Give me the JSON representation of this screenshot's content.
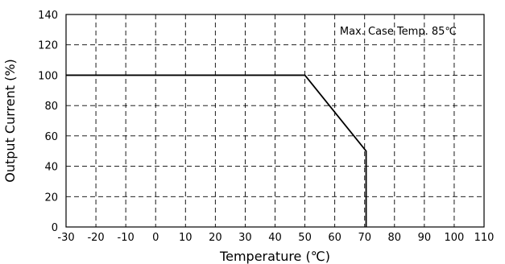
{
  "chart_data": {
    "type": "line",
    "title": "",
    "xlabel": "Temperature (℃)",
    "ylabel": "Output Current (%)",
    "xlim": [
      -30,
      110
    ],
    "ylim": [
      0,
      140
    ],
    "xticks": [
      -30,
      -20,
      -10,
      0,
      10,
      20,
      30,
      40,
      50,
      60,
      70,
      80,
      90,
      100,
      110
    ],
    "yticks": [
      0,
      20,
      40,
      60,
      80,
      100,
      120,
      140
    ],
    "grid": true,
    "grid_style": "dashed",
    "annotation": "Max. Case Temp. 85℃",
    "series": [
      {
        "x": [
          -30,
          50,
          70.5,
          70.5,
          70.5
        ],
        "y": [
          100,
          100,
          50,
          50,
          0
        ],
        "color": "#000000"
      }
    ]
  }
}
